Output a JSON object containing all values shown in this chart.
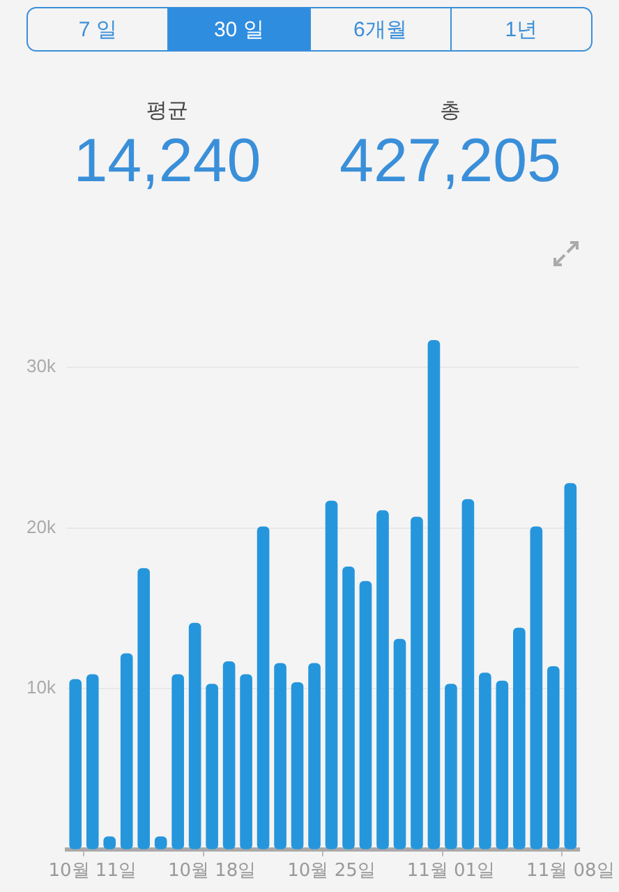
{
  "chart_data": {
    "type": "bar",
    "annotations": [
      "7 일",
      "30 일",
      "6개월",
      "1년",
      "평균",
      "14,240",
      "총",
      "427,205"
    ],
    "categories": [
      null,
      "10월 11일",
      null,
      null,
      null,
      null,
      null,
      null,
      "10월 18일",
      null,
      null,
      null,
      null,
      null,
      null,
      "10월 25일",
      null,
      null,
      null,
      null,
      null,
      null,
      "11월 01일",
      null,
      null,
      null,
      null,
      null,
      null,
      "11월 08일"
    ],
    "values": [
      10600,
      10900,
      800,
      12200,
      17500,
      800,
      10900,
      14100,
      10300,
      11700,
      10900,
      20100,
      11600,
      10400,
      11600,
      21700,
      17600,
      16700,
      21100,
      13100,
      20700,
      31700,
      10300,
      21800,
      11000,
      10500,
      13800,
      20100,
      11400,
      22800
    ],
    "color": "#2596dc",
    "ylim": [
      0,
      31700
    ],
    "yticks": [
      {
        "value": 10000,
        "label": "10k"
      },
      {
        "value": 20000,
        "label": "20k"
      },
      {
        "value": 30000,
        "label": "30k"
      }
    ],
    "grid": "y",
    "legend": false
  }
}
